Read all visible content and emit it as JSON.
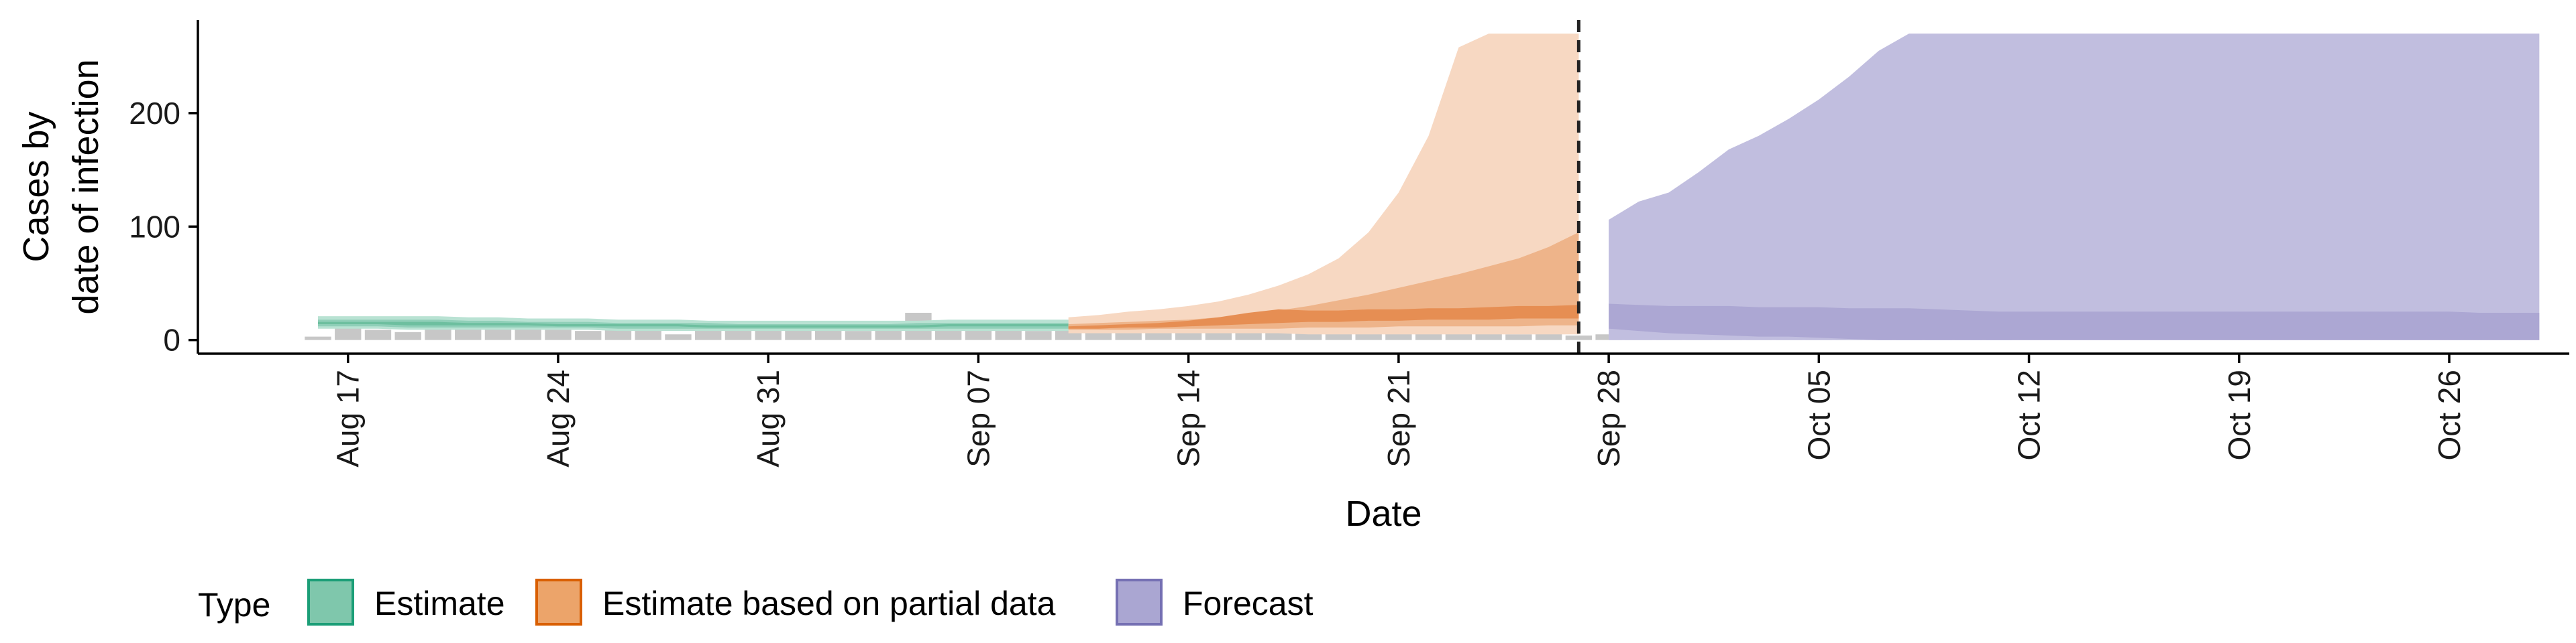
{
  "chart_data": {
    "type": "area",
    "xlabel": "Date",
    "ylabel": [
      "Cases by",
      "date of infection"
    ],
    "ylim": [
      -12,
      282
    ],
    "yticks": [
      0,
      100,
      200
    ],
    "x_axis": {
      "start": "2020-08-12",
      "end": "2020-10-30",
      "ticks": [
        {
          "date": "2020-08-17",
          "label": "Aug 17"
        },
        {
          "date": "2020-08-24",
          "label": "Aug 24"
        },
        {
          "date": "2020-08-31",
          "label": "Aug 31"
        },
        {
          "date": "2020-09-07",
          "label": "Sep 07"
        },
        {
          "date": "2020-09-14",
          "label": "Sep 14"
        },
        {
          "date": "2020-09-21",
          "label": "Sep 21"
        },
        {
          "date": "2020-09-28",
          "label": "Sep 28"
        },
        {
          "date": "2020-10-05",
          "label": "Oct 05"
        },
        {
          "date": "2020-10-12",
          "label": "Oct 12"
        },
        {
          "date": "2020-10-19",
          "label": "Oct 19"
        },
        {
          "date": "2020-10-26",
          "label": "Oct 26"
        }
      ]
    },
    "vline_date": "2020-09-27",
    "legend": {
      "title": "Type",
      "placement": "bottom",
      "items": [
        {
          "label": "Estimate",
          "fill": "#7fc7ac",
          "stroke": "#1b9e77"
        },
        {
          "label": "Estimate based on partial data",
          "fill": "#eca46a",
          "stroke": "#d95f02"
        },
        {
          "label": "Forecast",
          "fill": "#aaa6d2",
          "stroke": "#7570b3"
        }
      ]
    },
    "observed_cases": {
      "start": "2020-08-16",
      "color": "#bdbdbd",
      "values": [
        3,
        12,
        9,
        7,
        11,
        18,
        10,
        12,
        9,
        8,
        13,
        17,
        5,
        9,
        13,
        12,
        10,
        9,
        8,
        14,
        24,
        17,
        10,
        9,
        8,
        10,
        11,
        8,
        10,
        6,
        9,
        8,
        10,
        9,
        11,
        10,
        8,
        9,
        7,
        6,
        5,
        7,
        4,
        5,
        4,
        3,
        12,
        10,
        8,
        12,
        17,
        15,
        16,
        18,
        20,
        21,
        22
      ]
    },
    "series": [
      {
        "name": "Estimate",
        "start": "2020-08-16",
        "colors": [
          "#b9e2d3",
          "#8fcfb8",
          "#6dbf9f"
        ],
        "bands": [
          {
            "lower": [
              10,
              10,
              10,
              9,
              9,
              9,
              9,
              9,
              9,
              9,
              8,
              8,
              8,
              8,
              8,
              8,
              8,
              8,
              8,
              8,
              8,
              8,
              8,
              8,
              8,
              8,
              8,
              8,
              8,
              8,
              8,
              8,
              8,
              8,
              8
            ],
            "upper": [
              21,
              21,
              21,
              21,
              21,
              20,
              20,
              19,
              19,
              19,
              18,
              18,
              18,
              17,
              17,
              17,
              17,
              17,
              17,
              17,
              17,
              18,
              18,
              18,
              18,
              18,
              18,
              17,
              17,
              17,
              17,
              17,
              17,
              17,
              17
            ]
          },
          {
            "lower": [
              12,
              12,
              12,
              11,
              11,
              11,
              11,
              11,
              11,
              11,
              10,
              10,
              10,
              10,
              10,
              10,
              10,
              10,
              10,
              10,
              10,
              10,
              10,
              10,
              10,
              10,
              10,
              10,
              10,
              10,
              10,
              10,
              10,
              10,
              10
            ],
            "upper": [
              18,
              18,
              18,
              18,
              18,
              17,
              17,
              16,
              16,
              16,
              15,
              15,
              15,
              15,
              14,
              14,
              14,
              14,
              14,
              14,
              15,
              15,
              15,
              15,
              15,
              15,
              15,
              14,
              14,
              14,
              14,
              14,
              14,
              14,
              14
            ]
          },
          {
            "lower": [
              14,
              14,
              14,
              13,
              13,
              13,
              13,
              13,
              12,
              12,
              12,
              12,
              12,
              11,
              11,
              11,
              11,
              11,
              11,
              11,
              11,
              12,
              12,
              12,
              12,
              12,
              12,
              11,
              11,
              11,
              11,
              11,
              11,
              11,
              11
            ],
            "upper": [
              16,
              16,
              16,
              16,
              16,
              15,
              15,
              15,
              14,
              14,
              14,
              14,
              14,
              13,
              13,
              13,
              13,
              13,
              13,
              13,
              13,
              14,
              14,
              14,
              14,
              14,
              14,
              13,
              13,
              13,
              13,
              13,
              13,
              13,
              13
            ]
          }
        ]
      },
      {
        "name": "Estimate based on partial data",
        "start": "2020-09-10",
        "colors": [
          "#f7d8c2",
          "#eeb48a",
          "#e68e53"
        ],
        "bands": [
          {
            "lower": [
              6,
              6,
              6,
              6,
              6,
              6,
              6,
              6,
              5,
              5,
              5,
              5,
              5,
              5,
              5,
              5,
              5,
              5
            ],
            "upper": [
              20,
              22,
              25,
              27,
              30,
              34,
              40,
              48,
              58,
              72,
              95,
              130,
              180,
              258,
              270,
              270,
              270,
              270
            ]
          },
          {
            "lower": [
              9,
              9,
              9,
              10,
              10,
              10,
              10,
              10,
              11,
              11,
              11,
              12,
              12,
              12,
              12,
              12,
              13,
              13
            ],
            "upper": [
              14,
              15,
              16,
              17,
              18,
              20,
              22,
              26,
              30,
              35,
              40,
              46,
              52,
              58,
              65,
              72,
              82,
              95
            ]
          },
          {
            "lower": [
              10,
              10,
              11,
              11,
              12,
              13,
              14,
              15,
              16,
              16,
              17,
              17,
              18,
              18,
              18,
              19,
              19,
              19
            ],
            "upper": [
              12,
              13,
              14,
              15,
              17,
              20,
              24,
              27,
              26,
              26,
              27,
              27,
              28,
              28,
              29,
              30,
              30,
              31
            ]
          }
        ]
      },
      {
        "name": "Forecast",
        "start": "2020-09-28",
        "colors": [
          "#e1e0f0",
          "#c1bedf",
          "#aca7d3"
        ],
        "bands": [
          {
            "lower": [
              0,
              0,
              0,
              0,
              0,
              0,
              0,
              0,
              0,
              0,
              0,
              0,
              0,
              0,
              0,
              0,
              0,
              0,
              0,
              0,
              0,
              0,
              0,
              0,
              0,
              0,
              0,
              0,
              0,
              0,
              0,
              0
            ],
            "upper": [
              106,
              122,
              130,
              148,
              168,
              180,
              195,
              212,
              232,
              255,
              270,
              270,
              270,
              270,
              270,
              270,
              270,
              270,
              270,
              270,
              270,
              270,
              270,
              270,
              270,
              270,
              270,
              270,
              270,
              270,
              270,
              270
            ]
          },
          {
            "lower": [
              0,
              0,
              0,
              0,
              0,
              0,
              0,
              0,
              0,
              0,
              0,
              0,
              0,
              0,
              0,
              0,
              0,
              0,
              0,
              0,
              0,
              0,
              0,
              0,
              0,
              0,
              0,
              0,
              0,
              0,
              0,
              0
            ],
            "upper": [
              106,
              122,
              130,
              148,
              168,
              180,
              195,
              212,
              232,
              255,
              270,
              270,
              270,
              270,
              270,
              270,
              270,
              270,
              270,
              270,
              270,
              270,
              270,
              270,
              270,
              270,
              270,
              270,
              270,
              270,
              270,
              270
            ]
          },
          {
            "lower": [
              10,
              8,
              6,
              5,
              4,
              3,
              3,
              2,
              1,
              0,
              0,
              0,
              0,
              0,
              0,
              0,
              0,
              0,
              0,
              0,
              0,
              0,
              0,
              0,
              0,
              0,
              0,
              0,
              0,
              0,
              0,
              0
            ],
            "upper": [
              32,
              31,
              30,
              30,
              30,
              29,
              29,
              29,
              28,
              28,
              28,
              27,
              26,
              25,
              25,
              25,
              25,
              25,
              25,
              25,
              25,
              25,
              25,
              25,
              25,
              25,
              25,
              25,
              25,
              24,
              24,
              24
            ]
          }
        ]
      }
    ]
  }
}
